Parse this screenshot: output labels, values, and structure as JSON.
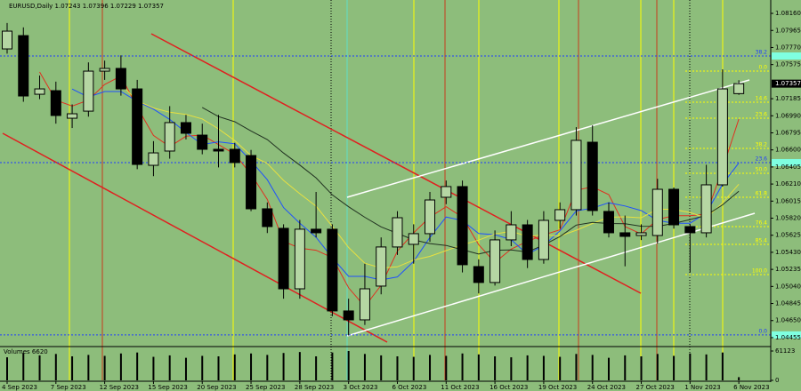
{
  "chart_data": {
    "type": "candlestick",
    "title": "EURUSD,Daily 1.07243 1.07396 1.07229 1.07357",
    "categories": [
      "4 Sep 2023",
      null,
      null,
      "7 Sep 2023",
      null,
      null,
      "12 Sep 2023",
      null,
      null,
      "15 Sep 2023",
      null,
      null,
      "20 Sep 2023",
      null,
      null,
      "25 Sep 2023",
      null,
      null,
      "28 Sep 2023",
      null,
      null,
      "3 Oct 2023",
      null,
      null,
      "6 Oct 2023",
      null,
      null,
      "11 Oct 2023",
      null,
      null,
      "16 Oct 2023",
      null,
      null,
      "19 Oct 2023",
      null,
      null,
      "24 Oct 2023",
      null,
      null,
      "27 Oct 2023",
      null,
      null,
      "1 Nov 2023",
      null,
      null,
      "6 Nov 2023"
    ],
    "series": [
      {
        "open": [
          1.07754,
          1.07906,
          1.07236,
          1.07277,
          1.06962,
          1.07043,
          1.075,
          1.07531,
          1.07297,
          1.06424,
          1.06587,
          1.06912,
          1.06769,
          1.06607,
          1.06607,
          1.06536,
          1.05927,
          1.05704,
          1.05013,
          1.05694,
          1.05694,
          1.0476,
          1.04658,
          1.05044,
          1.05491,
          1.05521,
          1.05643,
          1.06059,
          1.06181,
          1.05267,
          1.05085,
          1.05572,
          1.05744,
          1.05348,
          1.05795,
          1.05917,
          1.06688,
          1.05897,
          1.05653,
          1.05622,
          1.05622,
          1.0615,
          1.05724,
          1.05653,
          1.06201,
          1.07243
        ],
        "high": [
          1.0805,
          1.08,
          1.0745,
          1.0738,
          1.0712,
          1.076,
          1.0762,
          1.0768,
          1.074,
          1.067,
          1.071,
          1.07,
          1.069,
          1.07,
          1.0668,
          1.066,
          1.06,
          1.0575,
          1.058,
          1.0612,
          1.0575,
          1.049,
          1.053,
          1.056,
          1.059,
          1.0575,
          1.0612,
          1.0625,
          1.0625,
          1.0535,
          1.0568,
          1.059,
          1.058,
          1.059,
          1.06,
          1.0686,
          1.0688,
          1.06,
          1.0585,
          1.0575,
          1.0627,
          1.0617,
          1.0575,
          1.0643,
          1.0752,
          1.07396
        ],
        "low": [
          1.077,
          1.0715,
          1.0718,
          1.069,
          1.0685,
          1.0698,
          1.074,
          1.0722,
          1.0638,
          1.063,
          1.065,
          1.0672,
          1.0655,
          1.064,
          1.064,
          1.059,
          1.0565,
          1.049,
          1.049,
          1.056,
          1.047,
          1.0448,
          1.046,
          1.0495,
          1.054,
          1.053,
          1.0555,
          1.0598,
          1.052,
          1.0496,
          1.0505,
          1.055,
          1.0525,
          1.053,
          1.057,
          1.0585,
          1.0585,
          1.056,
          1.0527,
          1.0557,
          1.0553,
          1.057,
          1.052,
          1.056,
          1.0618,
          1.07229
        ],
        "close": [
          1.07957,
          1.07216,
          1.07297,
          1.06993,
          1.07013,
          1.075,
          1.07531,
          1.07297,
          1.06434,
          1.06566,
          1.06912,
          1.0679,
          1.06607,
          1.06587,
          1.06455,
          1.05927,
          1.05724,
          1.05013,
          1.05694,
          1.05653,
          1.0476,
          1.04658,
          1.05013,
          1.05491,
          1.05825,
          1.05643,
          1.06028,
          1.06181,
          1.05288,
          1.05085,
          1.05572,
          1.05744,
          1.05348,
          1.05795,
          1.05917,
          1.06709,
          1.05907,
          1.05653,
          1.05612,
          1.05653,
          1.0615,
          1.05744,
          1.05653,
          1.06201,
          1.07297,
          1.07357
        ]
      }
    ],
    "ylim": [
      1.04353,
      1.08262
    ],
    "yticks": [
      {
        "value": 1.0816,
        "label": "1.08160"
      },
      {
        "value": 1.07965,
        "label": "1.07965"
      },
      {
        "value": 1.0777,
        "label": "1.07770"
      },
      {
        "value": 1.07575,
        "label": "1.07575"
      },
      1.07185,
      {
        "value": 1.0699,
        "label": "1.06990"
      },
      1.06795,
      {
        "value": 1.066,
        "label": "1.06600"
      },
      1.06405,
      {
        "value": 1.0621,
        "label": "1.06210"
      },
      1.06015,
      {
        "value": 1.0582,
        "label": "1.05820"
      },
      1.05625,
      {
        "value": 1.0543,
        "label": "1.05430"
      },
      1.05235,
      {
        "value": 1.0504,
        "label": "1.05040"
      },
      1.04845,
      {
        "value": 1.0465,
        "label": "1.04650"
      },
      1.04455
    ],
    "fib_levels": [
      {
        "label": "0.0",
        "price": 1.075,
        "color": "#ffff00"
      },
      {
        "label": "14.6",
        "price": 1.07145,
        "color": "#ffff00"
      },
      {
        "label": "23.6",
        "price": 1.06962,
        "color": "#ffff00"
      },
      {
        "label": "38.2",
        "price": 1.06617,
        "color": "#ffff00"
      },
      {
        "label": "50.0",
        "price": 1.06333,
        "color": "#ffff00"
      },
      {
        "label": "61.8",
        "price": 1.06059,
        "color": "#ffff00"
      },
      {
        "label": "76.4",
        "price": 1.05724,
        "color": "#ffff00"
      },
      {
        "label": "85.4",
        "price": 1.05521,
        "color": "#ffff00"
      },
      {
        "label": "100.0",
        "price": 1.05176,
        "color": "#ffff00"
      },
      {
        "label": "38.2",
        "price": 1.07673,
        "color": "#1e3cff"
      },
      {
        "label": "23.6",
        "price": 1.06455,
        "color": "#1e3cff"
      },
      {
        "label": "0.0",
        "price": 1.04486,
        "color": "#1e3cff"
      }
    ],
    "volume": {
      "label": "Volumes 6620",
      "values": [
        48000,
        57000,
        52000,
        55000,
        50000,
        53000,
        51000,
        56000,
        58000,
        49000,
        52000,
        47000,
        51000,
        50000,
        54000,
        56000,
        53000,
        57000,
        59000,
        50000,
        58000,
        61123,
        55000,
        52000,
        50000,
        49000,
        53000,
        51000,
        56000,
        54000,
        50000,
        48000,
        52000,
        51000,
        49000,
        55000,
        53000,
        47000,
        52000,
        50000,
        55000,
        51000,
        56000,
        54000,
        58000,
        6620
      ],
      "ylim": [
        0,
        61123
      ],
      "yticks": [
        61123,
        0
      ]
    }
  }
}
